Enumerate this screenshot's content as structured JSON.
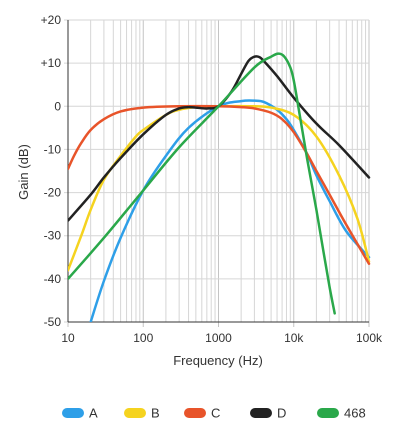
{
  "chart_data": {
    "type": "line",
    "x_scale": "log",
    "xlabel": "Frequency (Hz)",
    "ylabel": "Gain (dB)",
    "xlim": [
      10,
      100000
    ],
    "ylim": [
      -50,
      20
    ],
    "x_ticks": [
      {
        "value": 10,
        "label": "10"
      },
      {
        "value": 100,
        "label": "100"
      },
      {
        "value": 1000,
        "label": "1000"
      },
      {
        "value": 10000,
        "label": "10k"
      },
      {
        "value": 100000,
        "label": "100k"
      }
    ],
    "y_ticks": [
      {
        "value": 20,
        "label": "+20"
      },
      {
        "value": 10,
        "label": "+10"
      },
      {
        "value": 0,
        "label": "0"
      },
      {
        "value": -10,
        "label": "-10"
      },
      {
        "value": -20,
        "label": "-20"
      },
      {
        "value": -30,
        "label": "-30"
      },
      {
        "value": -40,
        "label": "-40"
      },
      {
        "value": -50,
        "label": "-50"
      }
    ],
    "grid": true,
    "legend_position": "bottom",
    "series": [
      {
        "name": "A",
        "color": "#2e9fe8",
        "points": [
          [
            20,
            -50
          ],
          [
            30,
            -40.5
          ],
          [
            50,
            -30.5
          ],
          [
            100,
            -19.5
          ],
          [
            200,
            -11.5
          ],
          [
            400,
            -5
          ],
          [
            1000,
            0
          ],
          [
            2000,
            1.2
          ],
          [
            3000,
            1.3
          ],
          [
            4000,
            1
          ],
          [
            6000,
            -0.8
          ],
          [
            8000,
            -3
          ],
          [
            10000,
            -5.5
          ],
          [
            15000,
            -11
          ],
          [
            20000,
            -16
          ],
          [
            30000,
            -22
          ],
          [
            50000,
            -29
          ],
          [
            100000,
            -35
          ]
        ]
      },
      {
        "name": "B",
        "color": "#f5d31f",
        "points": [
          [
            10,
            -38
          ],
          [
            15,
            -30
          ],
          [
            20,
            -24
          ],
          [
            30,
            -17
          ],
          [
            50,
            -11.5
          ],
          [
            80,
            -7
          ],
          [
            100,
            -5.5
          ],
          [
            200,
            -2
          ],
          [
            300,
            -0.8
          ],
          [
            500,
            -0.2
          ],
          [
            1000,
            0
          ],
          [
            3000,
            0
          ],
          [
            5000,
            -0.3
          ],
          [
            10000,
            -2
          ],
          [
            20000,
            -7
          ],
          [
            40000,
            -16
          ],
          [
            70000,
            -26
          ],
          [
            100000,
            -36
          ]
        ]
      },
      {
        "name": "C",
        "color": "#e8542a",
        "points": [
          [
            10,
            -14.5
          ],
          [
            12,
            -11.5
          ],
          [
            15,
            -8.5
          ],
          [
            20,
            -5.5
          ],
          [
            30,
            -3
          ],
          [
            50,
            -1.2
          ],
          [
            100,
            -0.3
          ],
          [
            300,
            0
          ],
          [
            1000,
            0
          ],
          [
            2000,
            -0.2
          ],
          [
            3000,
            -0.5
          ],
          [
            5000,
            -1.5
          ],
          [
            7000,
            -3
          ],
          [
            10000,
            -6
          ],
          [
            15000,
            -11
          ],
          [
            20000,
            -15
          ],
          [
            30000,
            -20.5
          ],
          [
            50000,
            -27.5
          ],
          [
            100000,
            -36.5
          ]
        ]
      },
      {
        "name": "D",
        "color": "#222222",
        "points": [
          [
            10,
            -26.5
          ],
          [
            20,
            -20.5
          ],
          [
            30,
            -16.5
          ],
          [
            50,
            -12
          ],
          [
            100,
            -6.5
          ],
          [
            200,
            -2
          ],
          [
            300,
            -0.5
          ],
          [
            400,
            -0.2
          ],
          [
            500,
            -0.3
          ],
          [
            700,
            -0.5
          ],
          [
            1000,
            0
          ],
          [
            1500,
            3.5
          ],
          [
            2000,
            7.5
          ],
          [
            2500,
            10.5
          ],
          [
            3000,
            11.5
          ],
          [
            3500,
            11.4
          ],
          [
            4000,
            10.5
          ],
          [
            6000,
            7
          ],
          [
            10000,
            2
          ],
          [
            20000,
            -4
          ],
          [
            40000,
            -9
          ],
          [
            100000,
            -16.5
          ]
        ]
      },
      {
        "name": "468",
        "color": "#2aa84a",
        "points": [
          [
            10,
            -40
          ],
          [
            30,
            -30.5
          ],
          [
            100,
            -19.5
          ],
          [
            300,
            -9.5
          ],
          [
            1000,
            0
          ],
          [
            3000,
            9
          ],
          [
            5000,
            11.5
          ],
          [
            6300,
            12.2
          ],
          [
            7500,
            11.5
          ],
          [
            9000,
            9
          ],
          [
            10000,
            6
          ],
          [
            12000,
            -2
          ],
          [
            15000,
            -12
          ],
          [
            20000,
            -24
          ],
          [
            25000,
            -34
          ],
          [
            30000,
            -42
          ],
          [
            35000,
            -48
          ]
        ]
      }
    ]
  }
}
